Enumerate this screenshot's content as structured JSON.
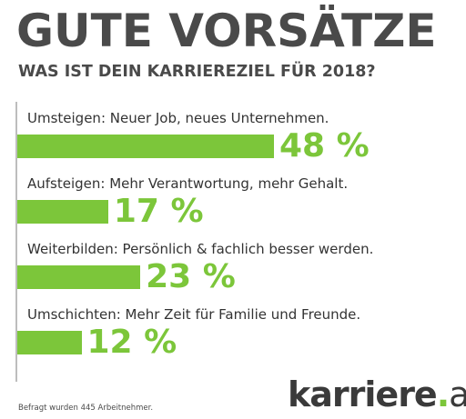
{
  "chart_data": {
    "type": "bar",
    "title": "GUTE VORSÄTZE",
    "subtitle": "WAS IST DEIN KARRIEREZIEL FÜR 2018?",
    "categories": [
      "Umsteigen: Neuer Job, neues Unternehmen.",
      "Aufsteigen: Mehr Verantwortung, mehr Gehalt.",
      "Weiterbilden: Persönlich & fachlich besser werden.",
      "Umschichten: Mehr Zeit für Familie und Freunde."
    ],
    "values": [
      48,
      17,
      23,
      12
    ],
    "value_labels": [
      "48 %",
      "17 %",
      "23 %",
      "12 %"
    ],
    "unit": "%",
    "orientation": "horizontal",
    "bar_color": "#7cc63a",
    "grid": false
  },
  "footnote": "Befragt wurden 445 Arbeitnehmer.",
  "logo": {
    "name": "karriere",
    "dot": ".",
    "tld": "at"
  }
}
